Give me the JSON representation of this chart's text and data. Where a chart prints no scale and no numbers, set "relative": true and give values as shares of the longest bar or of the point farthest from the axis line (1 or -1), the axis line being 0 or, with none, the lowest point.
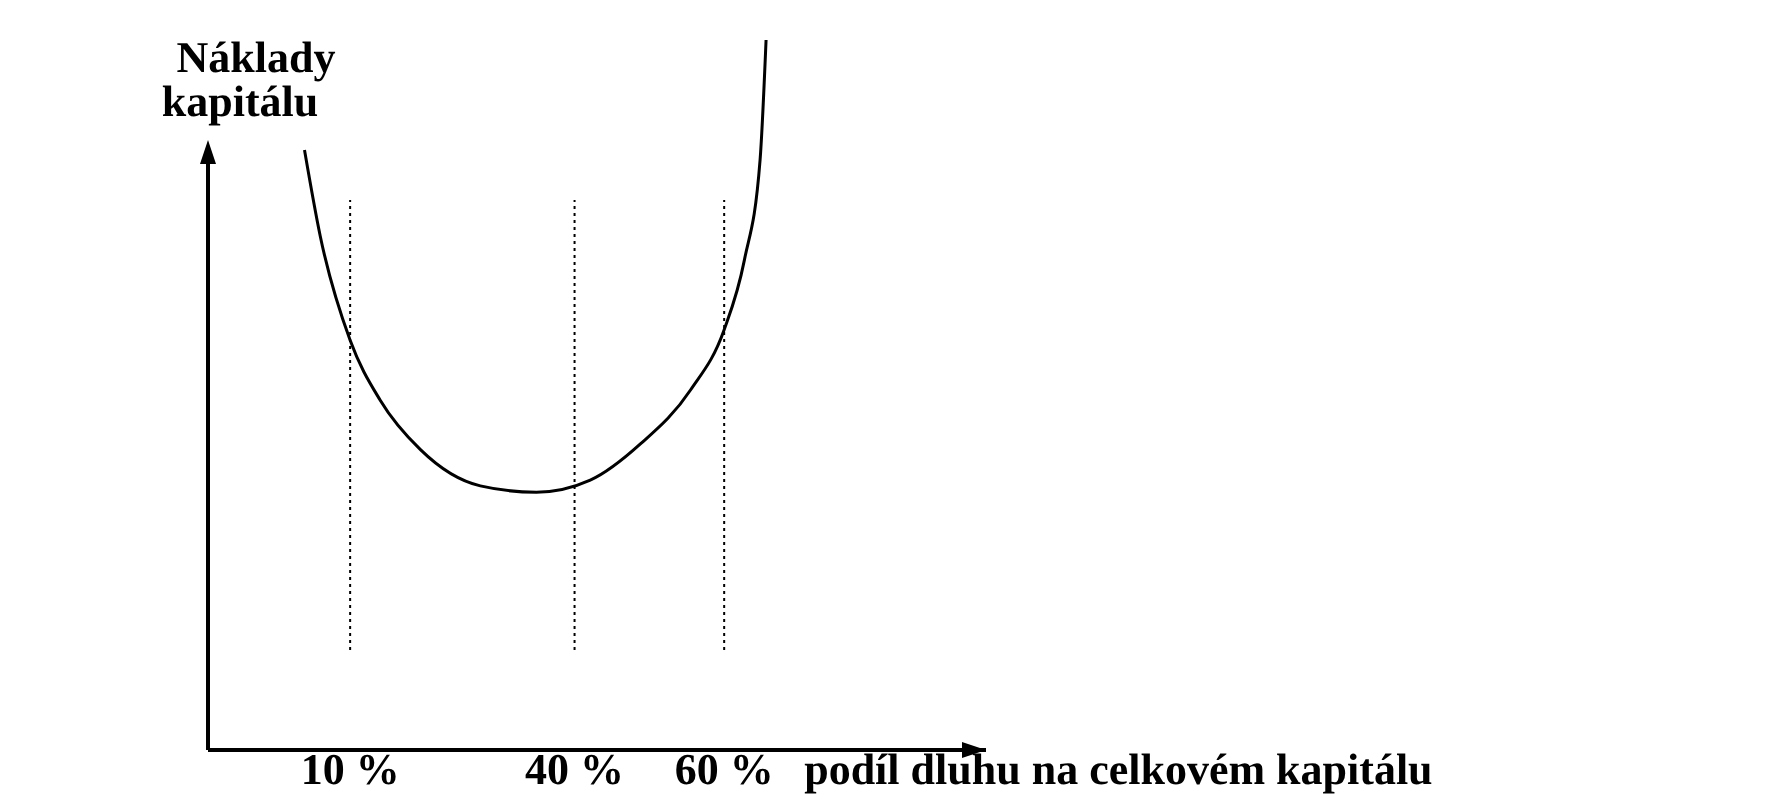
{
  "chart_data": {
    "type": "line",
    "relative": true,
    "ylabel": "Náklady kapitálu",
    "xlabel": "podíl dluhu na celkovém kapitálu",
    "xlim": [
      -9,
      95
    ],
    "xticks": [
      {
        "value": 10,
        "label": "10 %"
      },
      {
        "value": 40,
        "label": "40 %"
      },
      {
        "value": 60,
        "label": "60 %"
      }
    ],
    "x": [
      3.9,
      6,
      10,
      14,
      19.4,
      27.4,
      34.9,
      42.1,
      48.8,
      55.5,
      60,
      62.7,
      64.8,
      65.6
    ],
    "series": [
      {
        "color": "#000000",
        "values": [
          0.845,
          0.724,
          0.577,
          0.493,
          0.423,
          0.372,
          0.363,
          0.38,
          0.431,
          0.507,
          0.592,
          0.69,
          0.831,
          1
        ]
      }
    ],
    "ref_lines": [
      {
        "axis": "x",
        "value": 10,
        "line_style": "dotted"
      },
      {
        "axis": "x",
        "value": 40,
        "line_style": "dotted"
      },
      {
        "axis": "x",
        "value": 60,
        "line_style": "dotted"
      }
    ],
    "marker": "none",
    "grid": false
  }
}
